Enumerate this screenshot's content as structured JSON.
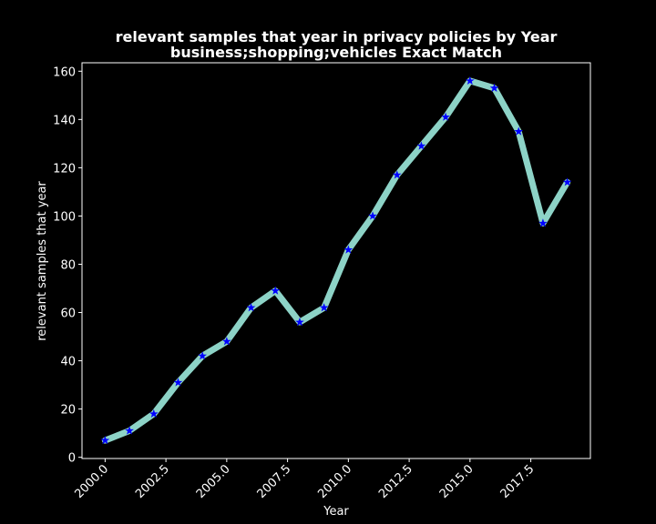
{
  "chart_data": {
    "type": "line",
    "title": "relevant samples that year in privacy policies by Year",
    "subtitle": "business;shopping;vehicles Exact Match",
    "xlabel": "Year",
    "ylabel": "relevant samples that year",
    "x": [
      2000,
      2001,
      2002,
      2003,
      2004,
      2005,
      2006,
      2007,
      2008,
      2009,
      2010,
      2011,
      2012,
      2013,
      2014,
      2015,
      2016,
      2017,
      2018,
      2019
    ],
    "series": [
      {
        "values": [
          7,
          11,
          18,
          31,
          42,
          48,
          62,
          69,
          56,
          62,
          86,
          100,
          117,
          129,
          141,
          156,
          153,
          135,
          97,
          114
        ]
      }
    ],
    "xlim": [
      1999.05,
      2019.95
    ],
    "ylim": [
      -0.5,
      163.5
    ],
    "xticks": [
      2000.0,
      2002.5,
      2005.0,
      2007.5,
      2010.0,
      2012.5,
      2015.0,
      2017.5
    ],
    "xtick_labels": [
      "2000.0",
      "2002.5",
      "2005.0",
      "2007.5",
      "2010.0",
      "2012.5",
      "2015.0",
      "2017.5"
    ],
    "yticks": [
      0,
      20,
      40,
      60,
      80,
      100,
      120,
      140,
      160
    ],
    "ytick_labels": [
      "0",
      "20",
      "40",
      "60",
      "80",
      "100",
      "120",
      "140",
      "160"
    ],
    "grid": false,
    "colors": {
      "background": "#000000",
      "line": "#8dd3c7",
      "marker": "#0000ff",
      "text": "#ffffff"
    },
    "marker": "star"
  }
}
